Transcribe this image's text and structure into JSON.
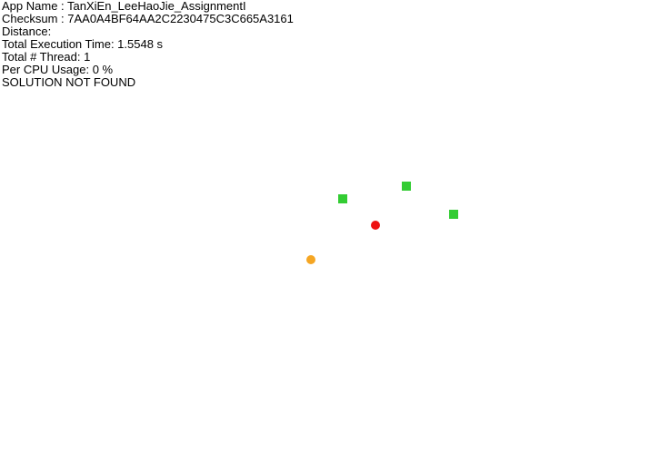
{
  "info": {
    "app_name": "App Name : TanXiEn_LeeHaoJie_AssignmentI",
    "checksum": "Checksum : 7AA0A4BF64AA2C2230475C3C665A3161",
    "distance": "Distance:",
    "execution_time": "Total Execution Time: 1.5548 s",
    "thread_count": "Total # Thread: 1",
    "cpu_usage": "Per CPU Usage: 0 %",
    "status": "SOLUTION NOT FOUND"
  },
  "colors": {
    "background": "#ffffff",
    "text": "#000000",
    "target_square": "#33cc33",
    "current_point": "#ee1111",
    "start_point": "#f5a623"
  }
}
